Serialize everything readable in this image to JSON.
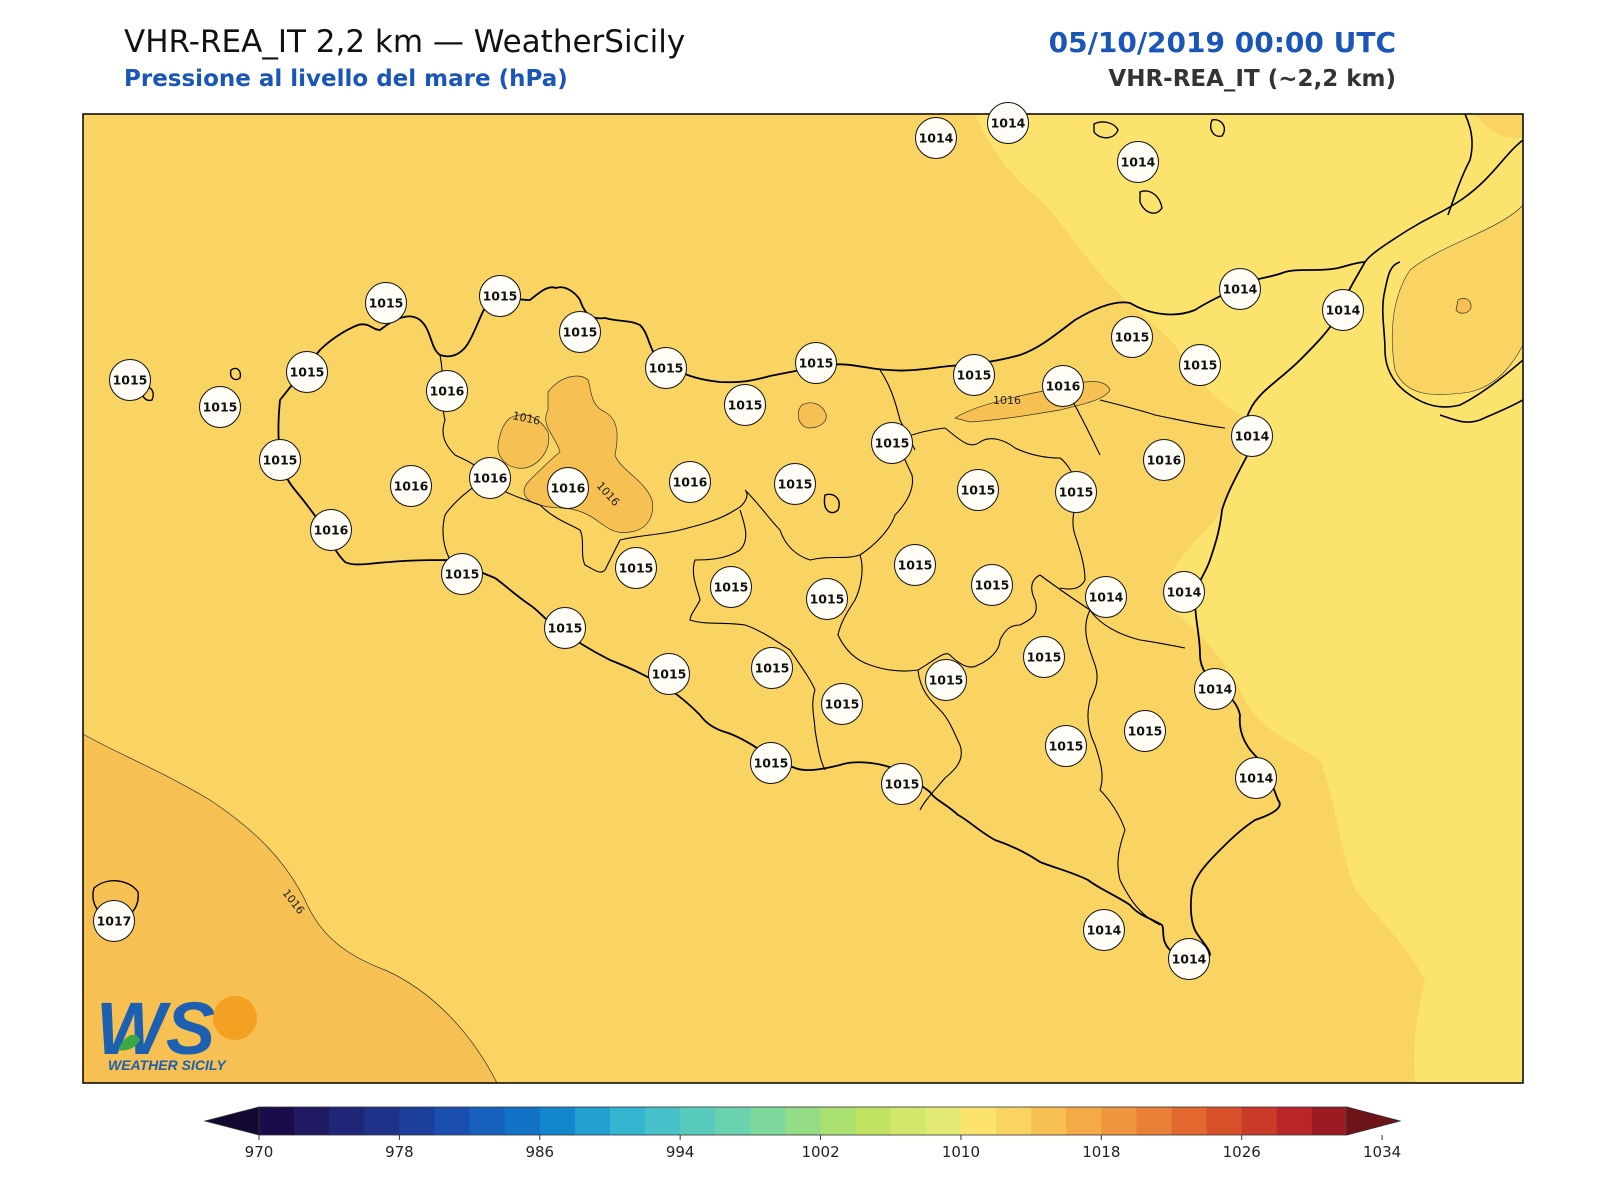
{
  "header": {
    "title": "VHR-REA_IT 2,2 km — WeatherSicily",
    "subtitle": "Pressione al livello del mare (hPa)",
    "datetime": "05/10/2019 00:00 UTC",
    "model": "VHR-REA_IT (~2,2 km)"
  },
  "logo": {
    "letters": "WS",
    "name": "WEATHER SICILY"
  },
  "map": {
    "field": "mean sea level pressure",
    "units": "hPa",
    "colors": {
      "band_1012_1014": "#fbe36e",
      "band_1014_1016": "#fad462",
      "band_1016_1018": "#f6c152",
      "coast": "#000000"
    },
    "contour_label": "1016",
    "stations": [
      {
        "v": "1014"
      },
      {
        "v": "1014"
      },
      {
        "v": "1014"
      },
      {
        "v": "1015"
      },
      {
        "v": "1015"
      },
      {
        "v": "1015"
      },
      {
        "v": "1014"
      },
      {
        "v": "1014"
      },
      {
        "v": "1015"
      },
      {
        "v": "1015"
      },
      {
        "v": "1016"
      },
      {
        "v": "1015"
      },
      {
        "v": "1015"
      },
      {
        "v": "1015"
      },
      {
        "v": "1015"
      },
      {
        "v": "1015"
      },
      {
        "v": "1016"
      },
      {
        "v": "1015"
      },
      {
        "v": "1015"
      },
      {
        "v": "1015"
      },
      {
        "v": "1016"
      },
      {
        "v": "1016"
      },
      {
        "v": "1016"
      },
      {
        "v": "1016"
      },
      {
        "v": "1015"
      },
      {
        "v": "1015"
      },
      {
        "v": "1016"
      },
      {
        "v": "1015"
      },
      {
        "v": "1014"
      },
      {
        "v": "1016"
      },
      {
        "v": "1015"
      },
      {
        "v": "1015"
      },
      {
        "v": "1015"
      },
      {
        "v": "1015"
      },
      {
        "v": "1014"
      },
      {
        "v": "1014"
      },
      {
        "v": "1015"
      },
      {
        "v": "1015"
      },
      {
        "v": "1015"
      },
      {
        "v": "1015"
      },
      {
        "v": "1015"
      },
      {
        "v": "1014"
      },
      {
        "v": "1015"
      },
      {
        "v": "1015"
      },
      {
        "v": "1015"
      },
      {
        "v": "1015"
      },
      {
        "v": "1014"
      },
      {
        "v": "1015"
      },
      {
        "v": "1015"
      },
      {
        "v": "1015"
      },
      {
        "v": "1017"
      },
      {
        "v": "1015"
      },
      {
        "v": "1014"
      },
      {
        "v": "1014"
      }
    ]
  },
  "colorbar": {
    "ticks": [
      "970",
      "978",
      "986",
      "994",
      "1002",
      "1010",
      "1018",
      "1026",
      "1034"
    ],
    "colors": [
      "#1a0c4a",
      "#1f1a62",
      "#1f2677",
      "#1e328a",
      "#1c3f9c",
      "#1a4faf",
      "#1760bd",
      "#1272c6",
      "#1387cc",
      "#22a0d2",
      "#34b6d0",
      "#48c2c8",
      "#59cbbd",
      "#6ad2ae",
      "#7dd89c",
      "#94dd86",
      "#aae170",
      "#c0e462",
      "#d2e86a",
      "#e3ea73",
      "#fbe36e",
      "#fad462",
      "#f6c152",
      "#f3aa47",
      "#ef963f",
      "#ea7f37",
      "#e3682f",
      "#d8502a",
      "#c93a29",
      "#b92528",
      "#9c1a22"
    ]
  }
}
